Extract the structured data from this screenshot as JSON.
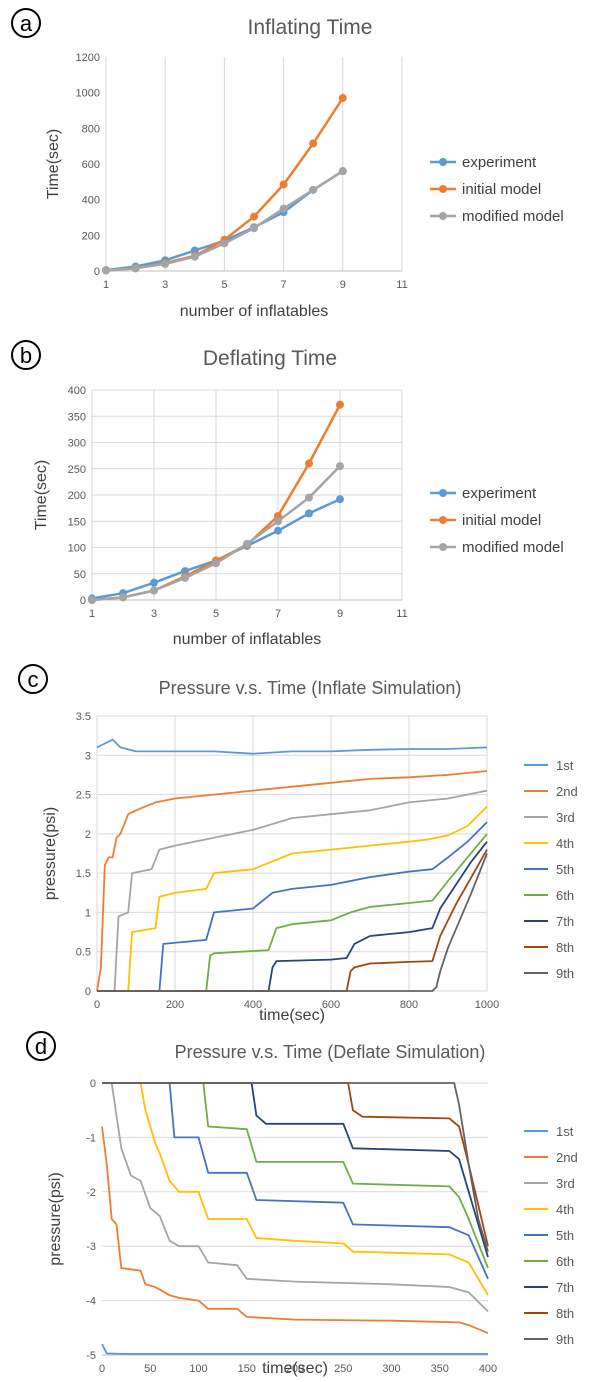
{
  "panel_labels": [
    "a",
    "b",
    "c",
    "d"
  ],
  "chart_data": [
    {
      "type": "line",
      "title": "Inflating Time",
      "xlabel": "number of inflatables",
      "ylabel": "Time(sec)",
      "xlim": [
        1,
        11
      ],
      "ylim": [
        0,
        1200
      ],
      "x_ticks": [
        "1",
        "3",
        "5",
        "7",
        "9",
        "11"
      ],
      "y_ticks": [
        "0",
        "200",
        "400",
        "600",
        "800",
        "1000",
        "1200"
      ],
      "x": [
        1,
        2,
        3,
        4,
        5,
        6,
        7,
        8,
        9
      ],
      "series": [
        {
          "name": "experiment",
          "color": "#5B9BD5",
          "values": [
            5,
            25,
            60,
            115,
            170,
            245,
            330,
            455,
            560
          ]
        },
        {
          "name": "initial model",
          "color": "#ED7D31",
          "values": [
            3,
            15,
            45,
            85,
            175,
            305,
            485,
            715,
            970
          ]
        },
        {
          "name": "modified model",
          "color": "#A5A5A5",
          "values": [
            3,
            15,
            40,
            80,
            155,
            240,
            350,
            455,
            560
          ]
        }
      ],
      "grid": "vertical",
      "legend": "right"
    },
    {
      "type": "line",
      "title": "Deflating Time",
      "xlabel": "number of inflatables",
      "ylabel": "Time(sec)",
      "xlim": [
        1,
        11
      ],
      "ylim": [
        0,
        400
      ],
      "x_ticks": [
        "1",
        "3",
        "5",
        "7",
        "9",
        "11"
      ],
      "y_ticks": [
        "0",
        "50",
        "100",
        "150",
        "200",
        "250",
        "300",
        "350",
        "400"
      ],
      "x": [
        1,
        2,
        3,
        4,
        5,
        6,
        7,
        8,
        9
      ],
      "series": [
        {
          "name": "experiment",
          "color": "#5B9BD5",
          "values": [
            3,
            13,
            33,
            55,
            75,
            103,
            132,
            165,
            192
          ]
        },
        {
          "name": "initial model",
          "color": "#ED7D31",
          "values": [
            0,
            5,
            18,
            45,
            75,
            105,
            160,
            260,
            372
          ]
        },
        {
          "name": "modified model",
          "color": "#A5A5A5",
          "values": [
            0,
            5,
            18,
            42,
            70,
            107,
            150,
            195,
            255
          ]
        }
      ],
      "grid": "both",
      "legend": "right"
    },
    {
      "type": "line",
      "title": "Pressure v.s. Time (Inflate Simulation)",
      "xlabel": "time(sec)",
      "ylabel": "pressure(psi)",
      "xlim": [
        0,
        1000
      ],
      "ylim": [
        0,
        3.5
      ],
      "x_ticks": [
        "0",
        "200",
        "400",
        "600",
        "800",
        "1000"
      ],
      "y_ticks": [
        "0",
        "0.5",
        "1",
        "1.5",
        "2",
        "2.5",
        "3",
        "3.5"
      ],
      "series": [
        {
          "name": "1st",
          "color": "#5B9BD5",
          "x": [
            0,
            20,
            40,
            60,
            100,
            150,
            200,
            300,
            400,
            500,
            600,
            700,
            800,
            900,
            1000
          ],
          "values": [
            3.1,
            3.15,
            3.2,
            3.1,
            3.05,
            3.05,
            3.05,
            3.05,
            3.02,
            3.05,
            3.05,
            3.07,
            3.08,
            3.08,
            3.1
          ]
        },
        {
          "name": "2nd",
          "color": "#ED7D31",
          "x": [
            0,
            10,
            20,
            30,
            40,
            50,
            60,
            80,
            100,
            150,
            200,
            300,
            400,
            500,
            600,
            700,
            800,
            900,
            1000
          ],
          "values": [
            0,
            0.3,
            1.6,
            1.7,
            1.7,
            1.95,
            2.0,
            2.25,
            2.3,
            2.4,
            2.45,
            2.5,
            2.55,
            2.6,
            2.65,
            2.7,
            2.72,
            2.75,
            2.8
          ]
        },
        {
          "name": "3rd",
          "color": "#A5A5A5",
          "x": [
            0,
            45,
            55,
            80,
            90,
            140,
            160,
            200,
            300,
            400,
            500,
            600,
            700,
            800,
            900,
            1000
          ],
          "values": [
            0,
            0,
            0.95,
            1.0,
            1.5,
            1.55,
            1.8,
            1.85,
            1.95,
            2.05,
            2.2,
            2.25,
            2.3,
            2.4,
            2.45,
            2.55
          ]
        },
        {
          "name": "4th",
          "color": "#FFC000",
          "x": [
            0,
            80,
            90,
            150,
            160,
            200,
            280,
            300,
            400,
            500,
            600,
            700,
            800,
            850,
            900,
            950,
            1000
          ],
          "values": [
            0,
            0,
            0.75,
            0.8,
            1.2,
            1.25,
            1.3,
            1.5,
            1.55,
            1.75,
            1.8,
            1.85,
            1.9,
            1.93,
            1.98,
            2.1,
            2.35
          ]
        },
        {
          "name": "5th",
          "color": "#4472C4",
          "x": [
            0,
            160,
            170,
            280,
            300,
            400,
            450,
            500,
            600,
            700,
            800,
            860,
            900,
            950,
            1000
          ],
          "values": [
            0,
            0,
            0.6,
            0.65,
            1.0,
            1.05,
            1.25,
            1.3,
            1.35,
            1.45,
            1.52,
            1.55,
            1.7,
            1.9,
            2.15
          ]
        },
        {
          "name": "6th",
          "color": "#70AD47",
          "x": [
            0,
            280,
            290,
            300,
            440,
            460,
            500,
            600,
            650,
            700,
            800,
            860,
            900,
            950,
            1000
          ],
          "values": [
            0,
            0,
            0.45,
            0.48,
            0.52,
            0.8,
            0.85,
            0.9,
            1.0,
            1.07,
            1.12,
            1.15,
            1.4,
            1.7,
            2.0
          ]
        },
        {
          "name": "7th",
          "color": "#264478",
          "x": [
            0,
            440,
            450,
            460,
            600,
            640,
            660,
            700,
            800,
            860,
            880,
            920,
            960,
            1000
          ],
          "values": [
            0,
            0,
            0.3,
            0.38,
            0.4,
            0.42,
            0.6,
            0.7,
            0.75,
            0.8,
            1.05,
            1.35,
            1.65,
            1.9
          ]
        },
        {
          "name": "8th",
          "color": "#9E480E",
          "x": [
            0,
            640,
            650,
            660,
            700,
            800,
            860,
            880,
            920,
            960,
            1000
          ],
          "values": [
            0,
            0,
            0.25,
            0.3,
            0.35,
            0.37,
            0.38,
            0.7,
            1.1,
            1.45,
            1.8
          ]
        },
        {
          "name": "9th",
          "color": "#636363",
          "x": [
            0,
            860,
            870,
            880,
            900,
            930,
            960,
            1000
          ],
          "values": [
            0,
            0,
            0.05,
            0.25,
            0.55,
            0.9,
            1.25,
            1.75
          ]
        }
      ],
      "grid": "both",
      "legend": "right"
    },
    {
      "type": "line",
      "title": "Pressure v.s. Time (Deflate Simulation)",
      "xlabel": "time(sec)",
      "ylabel": "pressure(psi)",
      "xlim": [
        0,
        400
      ],
      "ylim": [
        -5,
        0
      ],
      "x_ticks": [
        "0",
        "50",
        "100",
        "150",
        "200",
        "250",
        "300",
        "350",
        "400"
      ],
      "y_ticks": [
        "0",
        "-1",
        "-2",
        "-3",
        "-4",
        "-5"
      ],
      "series": [
        {
          "name": "1st",
          "color": "#5B9BD5",
          "x": [
            0,
            5,
            20,
            100,
            200,
            300,
            400
          ],
          "values": [
            -4.8,
            -4.97,
            -4.98,
            -4.98,
            -4.98,
            -4.98,
            -4.98
          ]
        },
        {
          "name": "2nd",
          "color": "#ED7D31",
          "x": [
            0,
            5,
            10,
            15,
            20,
            40,
            45,
            55,
            70,
            80,
            100,
            110,
            140,
            150,
            200,
            300,
            370,
            380,
            400
          ],
          "values": [
            -0.8,
            -1.5,
            -2.5,
            -2.6,
            -3.4,
            -3.45,
            -3.7,
            -3.75,
            -3.9,
            -3.95,
            -4.0,
            -4.15,
            -4.15,
            -4.3,
            -4.35,
            -4.37,
            -4.4,
            -4.45,
            -4.6
          ]
        },
        {
          "name": "3rd",
          "color": "#A5A5A5",
          "x": [
            0,
            10,
            20,
            30,
            40,
            50,
            60,
            70,
            80,
            100,
            110,
            140,
            150,
            200,
            300,
            360,
            380,
            400
          ],
          "values": [
            0,
            0,
            -1.2,
            -1.7,
            -1.8,
            -2.3,
            -2.45,
            -2.9,
            -3.0,
            -3.0,
            -3.3,
            -3.35,
            -3.6,
            -3.65,
            -3.7,
            -3.75,
            -3.85,
            -4.2
          ]
        },
        {
          "name": "4th",
          "color": "#FFC000",
          "x": [
            0,
            40,
            45,
            55,
            60,
            70,
            80,
            100,
            110,
            150,
            160,
            200,
            250,
            260,
            360,
            380,
            400
          ],
          "values": [
            0,
            0,
            -0.5,
            -1.1,
            -1.3,
            -1.8,
            -2.0,
            -2.0,
            -2.5,
            -2.5,
            -2.85,
            -2.9,
            -2.95,
            -3.1,
            -3.15,
            -3.3,
            -3.9
          ]
        },
        {
          "name": "5th",
          "color": "#4472C4",
          "x": [
            0,
            70,
            75,
            100,
            110,
            150,
            160,
            250,
            260,
            360,
            380,
            400
          ],
          "values": [
            0,
            0,
            -1.0,
            -1.0,
            -1.65,
            -1.65,
            -2.15,
            -2.2,
            -2.6,
            -2.65,
            -2.8,
            -3.6
          ]
        },
        {
          "name": "6th",
          "color": "#70AD47",
          "x": [
            0,
            105,
            110,
            150,
            160,
            250,
            260,
            360,
            370,
            380,
            400
          ],
          "values": [
            0,
            0,
            -0.8,
            -0.85,
            -1.45,
            -1.45,
            -1.85,
            -1.9,
            -2.1,
            -2.5,
            -3.4
          ]
        },
        {
          "name": "7th",
          "color": "#264478",
          "x": [
            0,
            155,
            160,
            170,
            250,
            260,
            360,
            370,
            380,
            400
          ],
          "values": [
            0,
            0,
            -0.6,
            -0.75,
            -0.75,
            -1.2,
            -1.25,
            -1.4,
            -2.0,
            -3.2
          ]
        },
        {
          "name": "8th",
          "color": "#9E480E",
          "x": [
            0,
            255,
            260,
            270,
            360,
            370,
            380,
            400
          ],
          "values": [
            0,
            0,
            -0.5,
            -0.62,
            -0.65,
            -0.8,
            -1.5,
            -3.0
          ]
        },
        {
          "name": "9th",
          "color": "#636363",
          "x": [
            0,
            365,
            370,
            380,
            390,
            400
          ],
          "values": [
            0,
            0,
            -0.4,
            -1.5,
            -2.5,
            -3.1
          ]
        }
      ],
      "grid": "horizontal",
      "legend": "right"
    }
  ]
}
